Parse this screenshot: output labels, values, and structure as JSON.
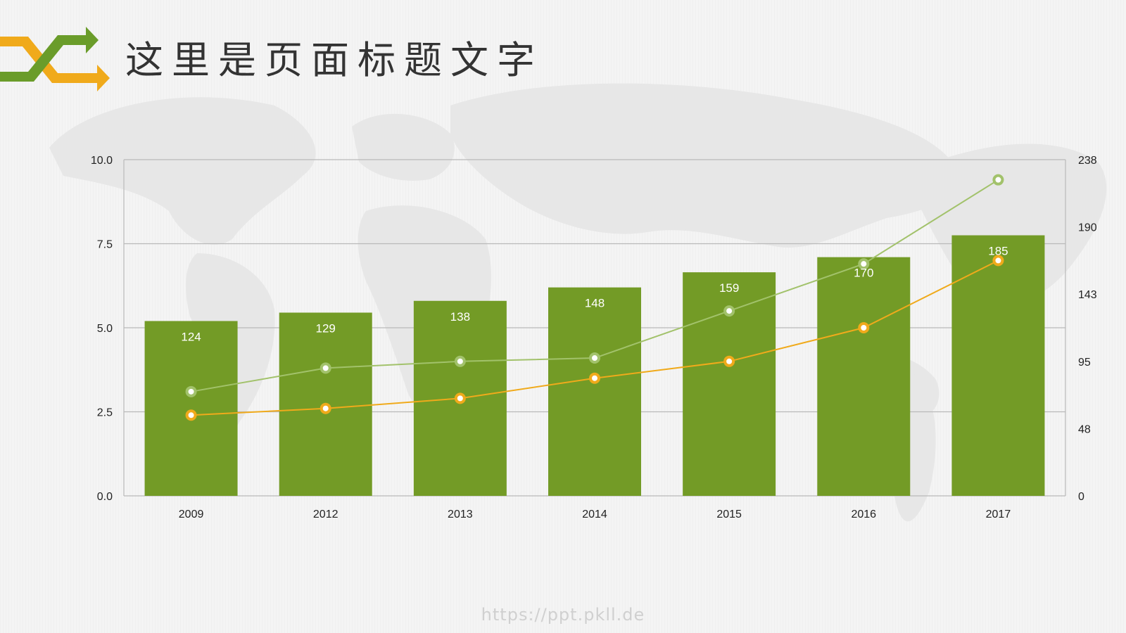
{
  "page": {
    "title": "这里是页面标题文字",
    "footer_url": "https://ppt.pkll.de"
  },
  "colors": {
    "bar": "#739b26",
    "line_green": "#a2c26b",
    "line_orange": "#f0aa1b",
    "grid": "#b9b9b9",
    "logo_green": "#6a9c2a",
    "logo_orange": "#f0aa1b"
  },
  "icons": {
    "logo": "crossing-arrows-icon",
    "background": "world-map"
  },
  "chart_data": {
    "type": "bar",
    "categories": [
      "2009",
      "2012",
      "2013",
      "2014",
      "2015",
      "2016",
      "2017"
    ],
    "bar_labels": [
      "124",
      "129",
      "138",
      "148",
      "159",
      "170",
      "185"
    ],
    "bar_values": [
      5.2,
      5.45,
      5.8,
      6.2,
      6.65,
      7.1,
      7.75
    ],
    "left_axis": {
      "ylim": [
        0,
        10
      ],
      "ticks": [
        "0.0",
        "2.5",
        "5.0",
        "7.5",
        "10.0"
      ]
    },
    "right_axis": {
      "ylim": [
        0,
        238
      ],
      "ticks": [
        "0",
        "48",
        "95",
        "143",
        "190",
        "238"
      ]
    },
    "line_series": [
      {
        "color": "#a2c26b",
        "values": [
          3.1,
          3.8,
          4.0,
          4.1,
          5.5,
          6.9,
          9.4
        ]
      },
      {
        "color": "#f0aa1b",
        "values": [
          2.4,
          2.6,
          2.9,
          3.5,
          4.0,
          5.0,
          7.0
        ]
      }
    ],
    "grid": true,
    "legend": "none"
  }
}
